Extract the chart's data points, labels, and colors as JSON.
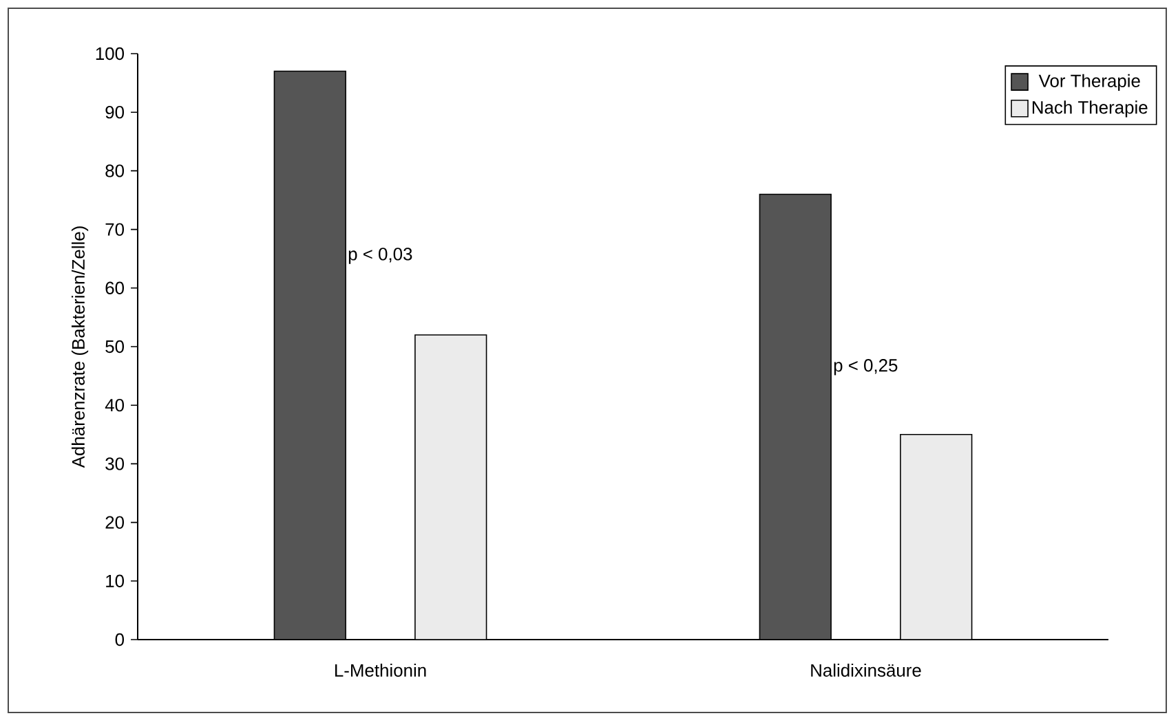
{
  "chart_data": {
    "type": "bar",
    "ylabel": "Adhärenzrate (Bakterien/Zelle)",
    "categories": [
      "L-Methionin",
      "Nalidixinsäure"
    ],
    "series": [
      {
        "name": "Vor Therapie",
        "color": "#555555",
        "values": [
          97,
          76
        ]
      },
      {
        "name": "Nach Therapie",
        "color": "#ebebeb",
        "values": [
          52,
          35
        ]
      }
    ],
    "ylim": [
      0,
      100
    ],
    "yticks": [
      0,
      10,
      20,
      30,
      40,
      50,
      60,
      70,
      80,
      90,
      100
    ],
    "annotations": [
      "p < 0,03",
      "p < 0,25"
    ],
    "legend": "top right",
    "grid": false
  }
}
